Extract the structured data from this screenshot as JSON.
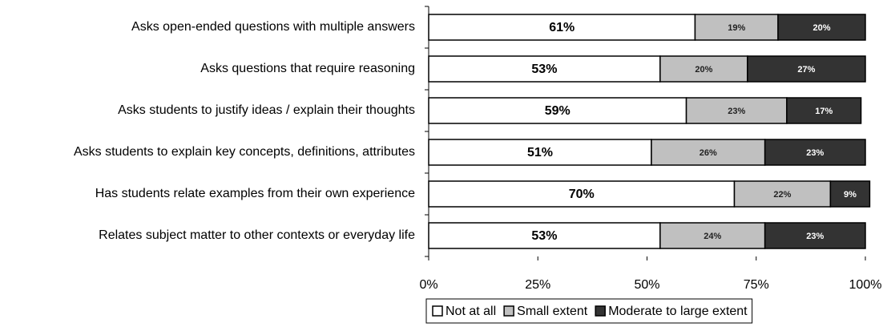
{
  "chart_data": {
    "type": "stacked-barh",
    "categories": [
      "Asks open-ended questions with multiple answers",
      "Asks questions that require reasoning",
      "Asks students to justify ideas / explain their thoughts",
      "Asks students to explain key concepts, definitions, attributes",
      "Has students relate examples from their own experience",
      "Relates subject matter to other contexts or everyday life"
    ],
    "series": [
      {
        "name": "Not at all",
        "color": "#ffffff",
        "values": [
          61,
          53,
          59,
          51,
          70,
          53
        ],
        "value_labels": [
          "61%",
          "53%",
          "59%",
          "51%",
          "70%",
          "53%"
        ]
      },
      {
        "name": "Small extent",
        "color": "#c0c0c0",
        "values": [
          19,
          20,
          23,
          26,
          22,
          24
        ],
        "value_labels": [
          "19%",
          "20%",
          "23%",
          "26%",
          "22%",
          "24%"
        ]
      },
      {
        "name": "Moderate to large extent",
        "color": "#333333",
        "values": [
          20,
          27,
          17,
          23,
          9,
          23
        ],
        "value_labels": [
          "20%",
          "27%",
          "17%",
          "23%",
          "9%",
          "23%"
        ]
      }
    ],
    "xlim": [
      0,
      100
    ],
    "xticks": [
      {
        "value": 0,
        "label": "0%"
      },
      {
        "value": 25,
        "label": "25%"
      },
      {
        "value": 50,
        "label": "50%"
      },
      {
        "value": 75,
        "label": "75%"
      },
      {
        "value": 100,
        "label": "100%"
      }
    ],
    "grid": false,
    "legend": "bottom"
  }
}
